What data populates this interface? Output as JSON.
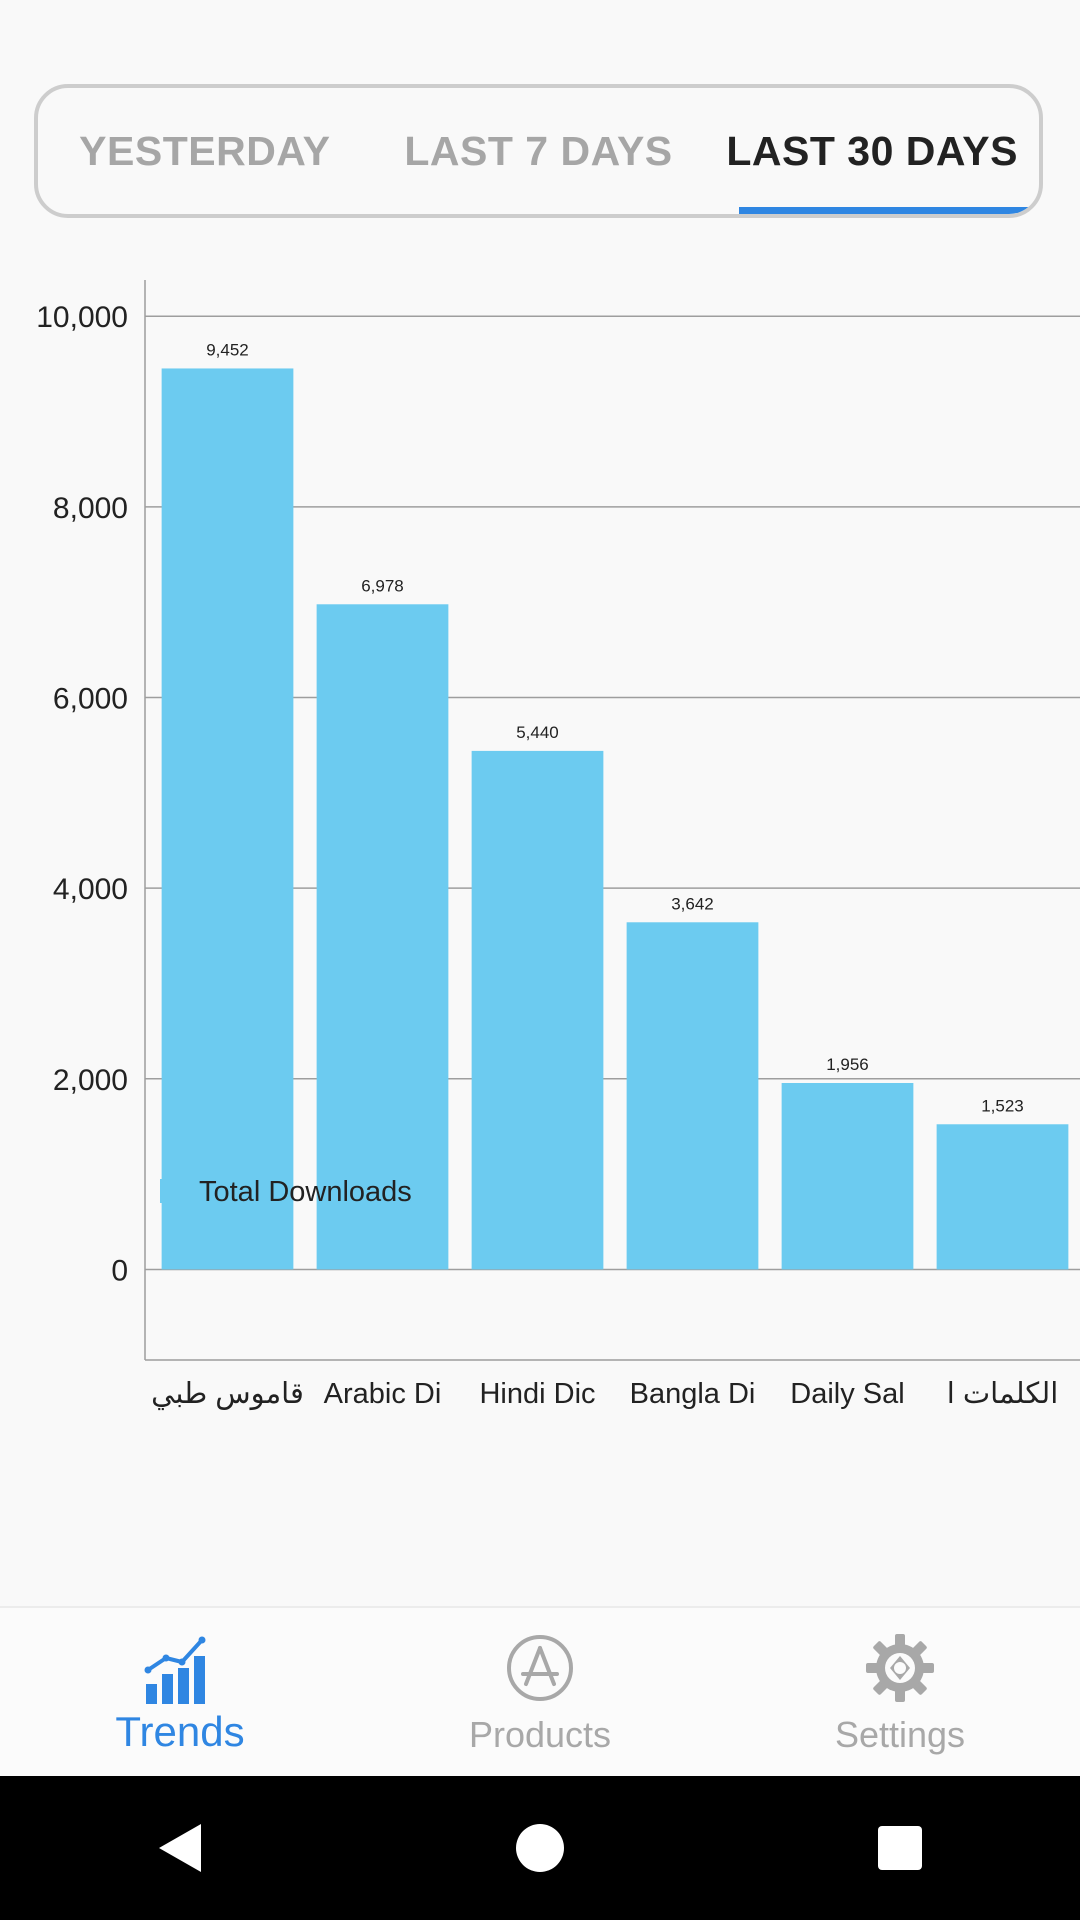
{
  "tabs": [
    {
      "label": "YESTERDAY",
      "active": false
    },
    {
      "label": "LAST 7 DAYS",
      "active": false
    },
    {
      "label": "LAST 30 DAYS",
      "active": true
    }
  ],
  "colors": {
    "bar": "#6ccbf0",
    "accent": "#2f86e2",
    "inactive": "#a6a6a6",
    "grid": "#9e9e9e"
  },
  "chart_data": {
    "type": "bar",
    "title": "",
    "xlabel": "",
    "ylabel": "",
    "categories": [
      "قاموس طبي",
      "Arabic Di",
      "Hindi Dic",
      "Bangla Di",
      "Daily Sal",
      "الكلمات ا"
    ],
    "values": [
      9452,
      6978,
      5440,
      3642,
      1956,
      1523
    ],
    "value_labels": [
      "9,452",
      "6,978",
      "5,440",
      "3,642",
      "1,956",
      "1,523"
    ],
    "y_ticks": [
      0,
      2000,
      4000,
      6000,
      8000,
      10000
    ],
    "y_tick_labels": [
      "0",
      "2,000",
      "4,000",
      "6,000",
      "8,000",
      "10,000"
    ],
    "ylim": [
      -950,
      10380
    ],
    "grid": true,
    "legend": {
      "position": "bottom-left",
      "label": "Total Downloads"
    },
    "series": [
      {
        "name": "Total Downloads",
        "values": [
          9452,
          6978,
          5440,
          3642,
          1956,
          1523
        ]
      }
    ]
  },
  "bottom_nav": {
    "items": [
      {
        "label": "Trends",
        "icon": "trends-icon",
        "active": true
      },
      {
        "label": "Products",
        "icon": "app-store-icon",
        "active": false
      },
      {
        "label": "Settings",
        "icon": "gear-icon",
        "active": false
      }
    ]
  },
  "system_nav": {
    "back": "back-icon",
    "home": "home-icon",
    "recent": "recent-apps-icon"
  }
}
